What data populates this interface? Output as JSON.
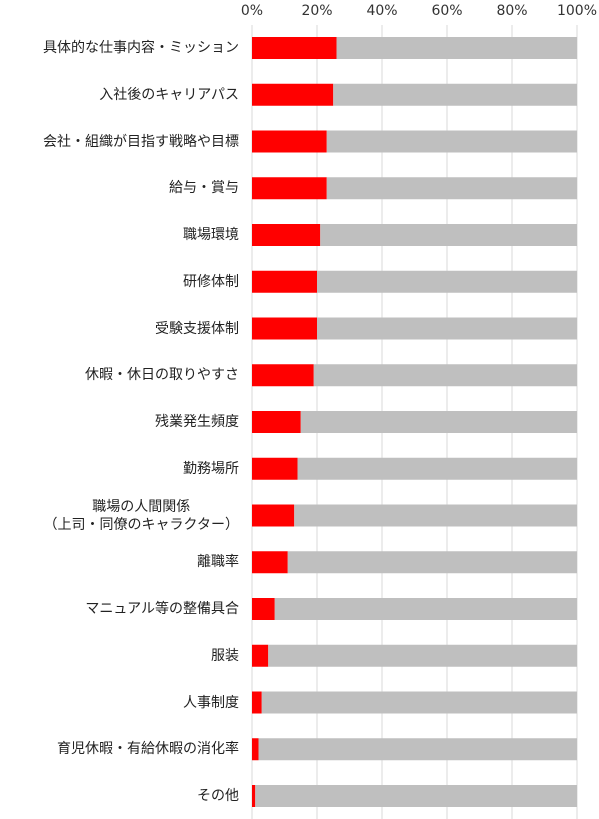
{
  "chart_data": {
    "type": "stacked_bar_horizontal",
    "categories": [
      "具体的な仕事内容・ミッション",
      "入社後のキャリアパス",
      "会社・組織が目指す戦略や目標",
      "給与・賞与",
      "職場環境",
      "研修体制",
      "受験支援体制",
      "休暇・休日の取りやすさ",
      "残業発生頻度",
      "勤務場所",
      "職場の人間関係\n（上司・同僚のキャラクター）",
      "離職率",
      "マニュアル等の整備具合",
      "服装",
      "人事制度",
      "育児休暇・有給休暇の消化率",
      "その他"
    ],
    "series": [
      {
        "color": "#ff0000",
        "values": [
          26,
          25,
          23,
          23,
          21,
          20,
          20,
          19,
          15,
          14,
          13,
          11,
          7,
          5,
          3,
          2,
          1
        ]
      },
      {
        "color": "#bfbfbf",
        "values": [
          74,
          75,
          77,
          77,
          79,
          80,
          80,
          81,
          85,
          86,
          87,
          89,
          93,
          95,
          97,
          98,
          99
        ]
      }
    ],
    "xlim": [
      0,
      100
    ],
    "xticks": [
      {
        "value": 0,
        "label": "0%"
      },
      {
        "value": 20,
        "label": "20%"
      },
      {
        "value": 40,
        "label": "40%"
      },
      {
        "value": 60,
        "label": "60%"
      },
      {
        "value": 80,
        "label": "80%"
      },
      {
        "value": 100,
        "label": "100%"
      }
    ],
    "grid": true
  }
}
